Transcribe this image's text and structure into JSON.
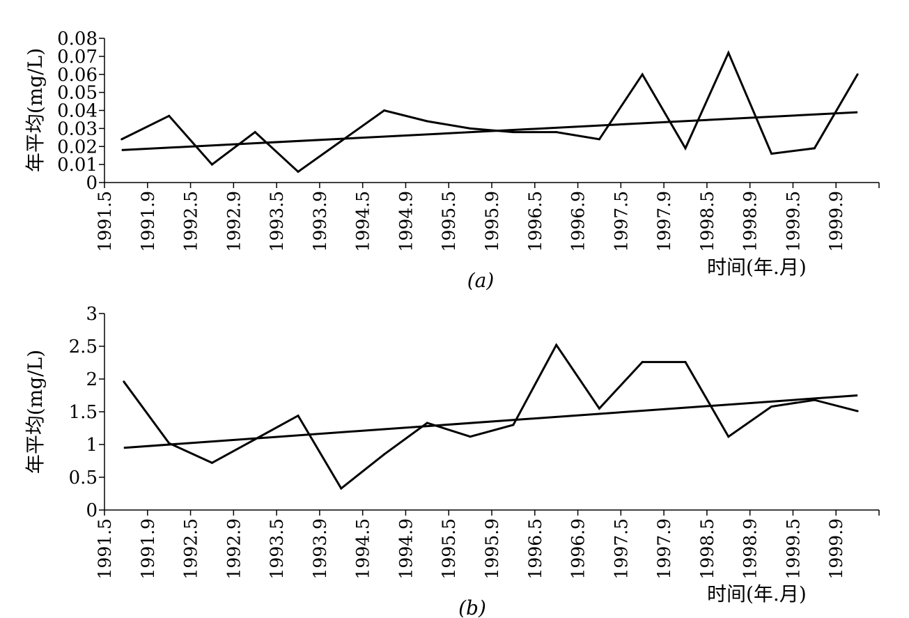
{
  "chart_data": [
    {
      "type": "line",
      "panel_label": "(a)",
      "ylabel": "年平均(mg/L)",
      "xlabel": "时间(年.月)",
      "ylim": [
        0,
        0.08
      ],
      "yticks": [
        "0",
        "0.01",
        "0.02",
        "0.03",
        "0.04",
        "0.05",
        "0.06",
        "0.07",
        "0.08"
      ],
      "xticks": [
        "1991.5",
        "1991.9",
        "1992.5",
        "1992.9",
        "1993.5",
        "1993.9",
        "1994.5",
        "1994.9",
        "1995.5",
        "1995.9",
        "1996.5",
        "1996.9",
        "1997.5",
        "1997.9",
        "1998.5",
        "1998.9",
        "1999.5",
        "1999.9"
      ],
      "series": [
        {
          "x": [
            0.4,
            1.5,
            2.5,
            3.5,
            4.5,
            5.5,
            6.5,
            7.5,
            8.5,
            9.5,
            10.5,
            11.5,
            12.5,
            13.5,
            14.5,
            15.5,
            16.5,
            17.5
          ],
          "values": [
            0.024,
            0.037,
            0.01,
            0.028,
            0.006,
            0.023,
            0.04,
            0.034,
            0.03,
            0.028,
            0.028,
            0.024,
            0.06,
            0.019,
            0.072,
            0.016,
            0.019,
            0.06
          ]
        }
      ],
      "trend": {
        "x": [
          0.4,
          17.5
        ],
        "values": [
          0.018,
          0.039
        ]
      },
      "grid": false
    },
    {
      "type": "line",
      "panel_label": "(b)",
      "ylabel": "年平均(mg/L)",
      "xlabel": "时间(年.月)",
      "ylim": [
        0,
        3
      ],
      "yticks": [
        "0",
        "0.5",
        "1",
        "1.5",
        "2",
        "2.5",
        "3"
      ],
      "xticks": [
        "1991.5",
        "1991.9",
        "1992.5",
        "1992.9",
        "1993.5",
        "1993.9",
        "1994.5",
        "1994.9",
        "1995.5",
        "1995.9",
        "1996.5",
        "1996.9",
        "1997.5",
        "1997.9",
        "1998.5",
        "1998.9",
        "1999.5",
        "1999.9"
      ],
      "series": [
        {
          "x": [
            0.45,
            1.5,
            2.5,
            3.5,
            4.5,
            5.5,
            6.5,
            7.5,
            8.5,
            9.5,
            10.5,
            11.5,
            12.5,
            13.5,
            14.5,
            15.5,
            16.5,
            17.5
          ],
          "values": [
            1.96,
            1.02,
            0.72,
            1.08,
            1.44,
            0.33,
            0.85,
            1.33,
            1.12,
            1.3,
            2.52,
            1.55,
            2.26,
            2.26,
            1.12,
            1.58,
            1.68,
            1.51
          ]
        }
      ],
      "trend": {
        "x": [
          0.45,
          17.5
        ],
        "values": [
          0.95,
          1.75
        ]
      },
      "grid": false
    }
  ]
}
